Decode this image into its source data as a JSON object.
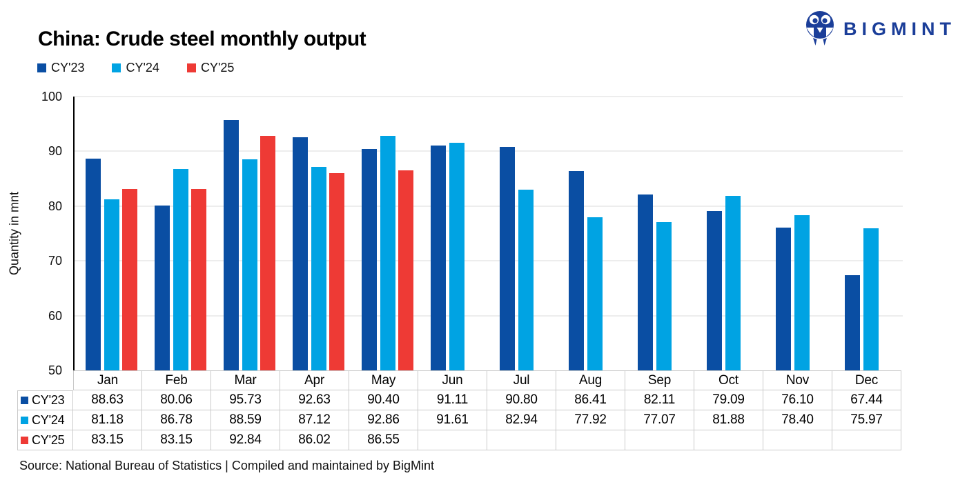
{
  "title": "China: Crude steel monthly output",
  "logo": {
    "text": "BIGMINT",
    "color": "#1b3e99",
    "icon": "bigmint-people-m-icon"
  },
  "footer": {
    "source": "Source: National Bureau of Statistics | Compiled and maintained by BigMint"
  },
  "chart_data": {
    "type": "bar",
    "title": "China: Crude steel monthly output",
    "xlabel": "",
    "ylabel": "Quantity in mnt",
    "ylim": [
      50,
      100
    ],
    "yticks": [
      100,
      90,
      80,
      70,
      60,
      50
    ],
    "grid": "horizontal-only",
    "legend_position": "top-left",
    "axis_line_color": "#000000",
    "gridline_color": "#ededed",
    "categories": [
      "Jan",
      "Feb",
      "Mar",
      "Apr",
      "May",
      "Jun",
      "Jul",
      "Aug",
      "Sep",
      "Oct",
      "Nov",
      "Dec"
    ],
    "series": [
      {
        "name": "CY'23",
        "color": "#0a4ea3",
        "values": [
          88.63,
          80.06,
          95.73,
          92.63,
          90.4,
          91.11,
          90.8,
          86.41,
          82.11,
          79.09,
          76.1,
          67.44
        ]
      },
      {
        "name": "CY'24",
        "color": "#00a3e3",
        "values": [
          81.18,
          86.78,
          88.59,
          87.12,
          92.86,
          91.61,
          82.94,
          77.92,
          77.07,
          81.88,
          78.4,
          75.97
        ]
      },
      {
        "name": "CY'25",
        "color": "#ee3a35",
        "values": [
          83.15,
          83.15,
          92.84,
          86.02,
          86.55,
          null,
          null,
          null,
          null,
          null,
          null,
          null
        ]
      }
    ],
    "data_table_shown": true,
    "value_decimals": 2
  }
}
